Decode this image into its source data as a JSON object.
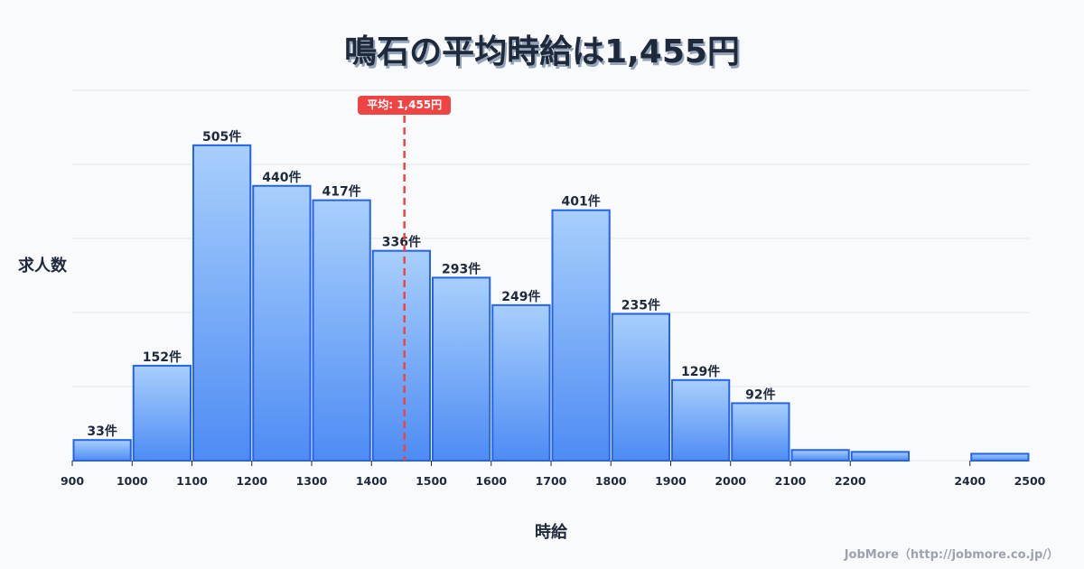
{
  "header": {
    "title": "鳴石の平均時給は1,455円"
  },
  "axes": {
    "ylabel": "求人数",
    "xlabel": "時給"
  },
  "average": {
    "badge": "平均: 1,455円",
    "value": 1455,
    "color": "#ef4444"
  },
  "credit": "JobMore（http://jobmore.co.jp/）",
  "colors": {
    "bar_top": "#a8cffc",
    "bar_bottom": "#4e8cf4",
    "bar_border": "#2563eb",
    "grid": "#e2e8f0",
    "text": "#1e293b"
  },
  "chart_data": {
    "type": "bar",
    "title": "鳴石の平均時給は1,455円",
    "xlabel": "時給",
    "ylabel": "求人数",
    "bins": [
      {
        "start": 900,
        "end": 1000,
        "count": 33,
        "label": "33件"
      },
      {
        "start": 1000,
        "end": 1100,
        "count": 152,
        "label": "152件"
      },
      {
        "start": 1100,
        "end": 1200,
        "count": 505,
        "label": "505件"
      },
      {
        "start": 1200,
        "end": 1300,
        "count": 440,
        "label": "440件"
      },
      {
        "start": 1300,
        "end": 1400,
        "count": 417,
        "label": "417件"
      },
      {
        "start": 1400,
        "end": 1500,
        "count": 336,
        "label": "336件"
      },
      {
        "start": 1500,
        "end": 1600,
        "count": 293,
        "label": "293件"
      },
      {
        "start": 1600,
        "end": 1700,
        "count": 249,
        "label": "249件"
      },
      {
        "start": 1700,
        "end": 1800,
        "count": 401,
        "label": "401件"
      },
      {
        "start": 1800,
        "end": 1900,
        "count": 235,
        "label": "235件"
      },
      {
        "start": 1900,
        "end": 2000,
        "count": 129,
        "label": "129件"
      },
      {
        "start": 2000,
        "end": 2100,
        "count": 92,
        "label": "92件"
      },
      {
        "start": 2100,
        "end": 2200,
        "count": 17,
        "label": ""
      },
      {
        "start": 2200,
        "end": 2300,
        "count": 14,
        "label": ""
      },
      {
        "start": 2400,
        "end": 2500,
        "count": 11,
        "label": ""
      }
    ],
    "x_ticks": [
      900,
      1000,
      1100,
      1200,
      1300,
      1400,
      1500,
      1600,
      1700,
      1800,
      1900,
      2000,
      2100,
      2200,
      2400,
      2500
    ],
    "xlim": [
      900,
      2500
    ],
    "ylim": [
      0,
      593
    ],
    "grid": true,
    "gridlines": 5,
    "mean_line": 1455,
    "mean_label": "平均: 1,455円"
  }
}
